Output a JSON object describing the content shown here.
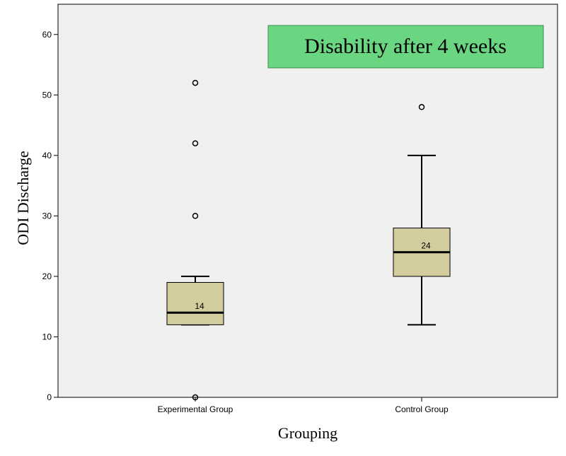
{
  "chart_data": {
    "type": "boxplot",
    "title": "Disability after 4 weeks",
    "xlabel": "Grouping",
    "ylabel": "ODI Discharge",
    "ylim": [
      0,
      65
    ],
    "yticks": [
      0,
      10,
      20,
      30,
      40,
      50,
      60
    ],
    "grid": false,
    "categories": [
      "Experimental Group",
      "Control Group"
    ],
    "boxes": [
      {
        "category": "Experimental Group",
        "whisker_low": 12,
        "q1": 12,
        "median": 14,
        "q3": 19,
        "whisker_high": 20,
        "outliers": [
          52,
          42,
          30,
          0
        ],
        "median_label": "14"
      },
      {
        "category": "Control Group",
        "whisker_low": 12,
        "q1": 20,
        "median": 24,
        "q3": 28,
        "whisker_high": 40,
        "outliers": [
          48
        ],
        "median_label": "24"
      }
    ],
    "colors": {
      "plot_bg": "#f0f0f0",
      "box_fill": "#d3cd9d",
      "title_bg": "#6bd682",
      "title_border": "#3a8f4e"
    }
  }
}
